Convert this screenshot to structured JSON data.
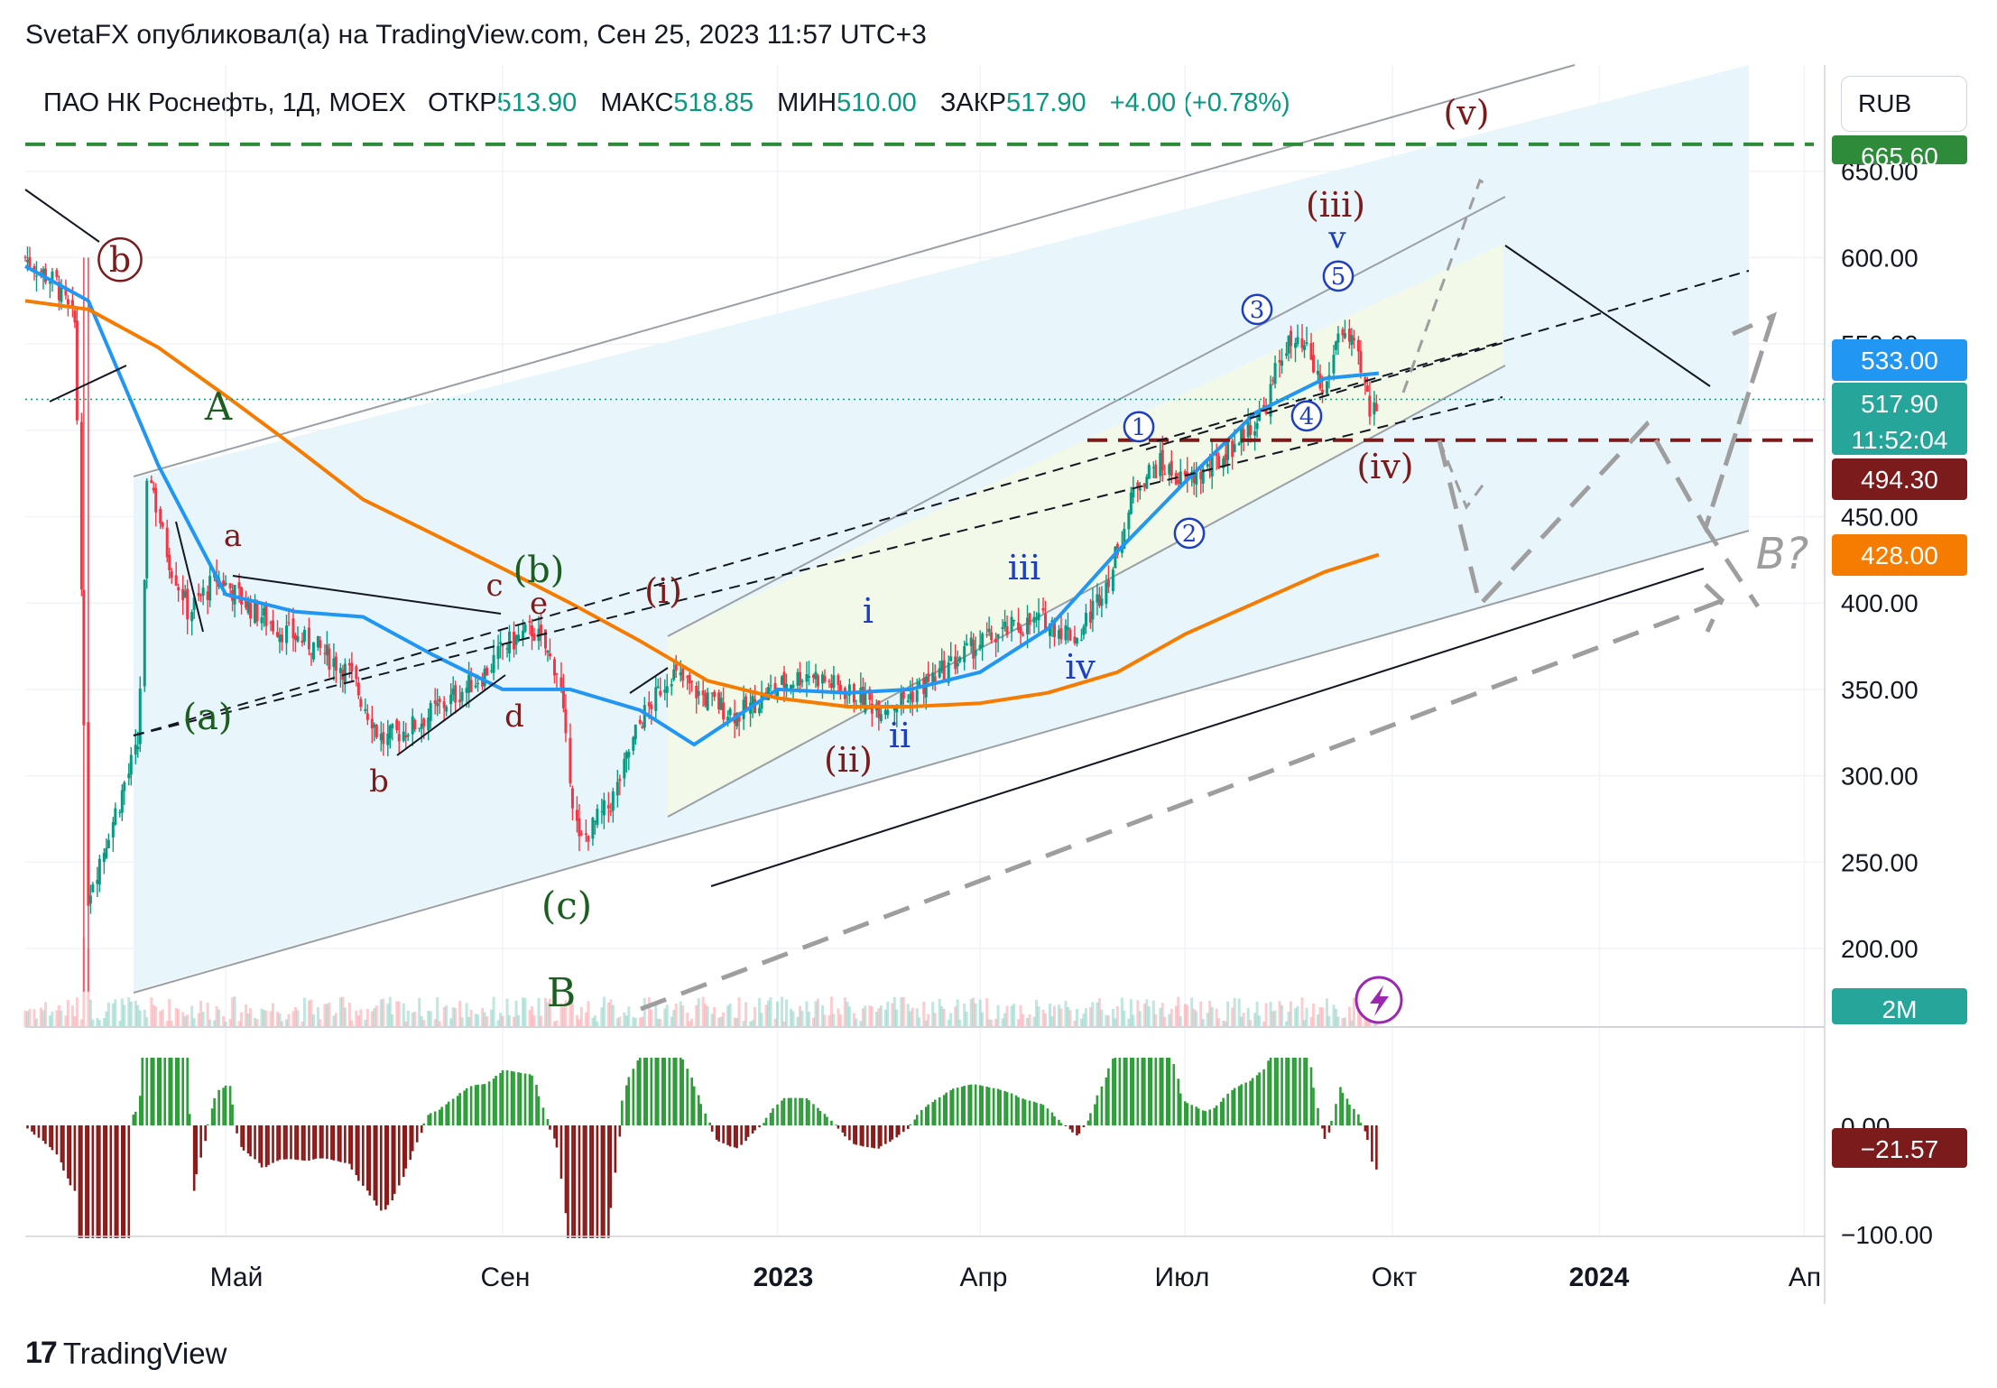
{
  "header": {
    "publisher_line": "SvetaFX опубликовал(а) на TradingView.com, Сен 25, 2023 11:57 UTC+3"
  },
  "symbol": {
    "name": "ПАО НК Роснефть, 1Д, MOEX",
    "open_label": "ОТКР",
    "open": "513.90",
    "high_label": "МАКС",
    "high": "518.85",
    "low_label": "МИН",
    "low": "510.00",
    "close_label": "ЗАКР",
    "close": "517.90",
    "change": "+4.00 (+0.78%)"
  },
  "currency": "RUB",
  "footer": {
    "brand": "TradingView",
    "brand_mark": "17"
  },
  "colors": {
    "up": "#089981",
    "down": "#f23645",
    "ma_fast": "#2196f3",
    "ma_slow": "#f57c00",
    "wave_red": "#7b1b1b",
    "wave_blue": "#1e3fbf",
    "wave_green": "#1b5e20",
    "channel_fill": "#e8f6fb",
    "subchannel_fill": "#f2f9e8",
    "projection": "#9e9e9e",
    "osc_up": "#2e9d3a",
    "osc_down": "#8b1a1a"
  },
  "price_badges": {
    "top": "665.60",
    "ma_fast": "533.00",
    "last": "517.90",
    "countdown": "11:52:04",
    "level": "494.30",
    "ma_slow": "428.00",
    "volume": "2M",
    "osc": "−21.57"
  },
  "price_axis": [
    "650.00",
    "600.00",
    "550.00",
    "500.00",
    "450.00",
    "400.00",
    "350.00",
    "300.00",
    "250.00",
    "200.00"
  ],
  "osc_axis": [
    "0.00",
    "−100.00"
  ],
  "time_axis": [
    "Май",
    "Сен",
    "2023",
    "Апр",
    "Июл",
    "Окт",
    "2024",
    "Ап"
  ],
  "time_axis_bold": [
    "2023",
    "2024"
  ],
  "wave_labels": {
    "red": [
      "b",
      "a",
      "b",
      "c",
      "e",
      "d",
      "(i)",
      "(ii)",
      "(iii)",
      "(iv)",
      "(v)"
    ],
    "blue": [
      "i",
      "ii",
      "iii",
      "iv",
      "v",
      "1",
      "2",
      "3",
      "4",
      "5"
    ],
    "green": [
      "A",
      "B",
      "(a)",
      "(b)",
      "(c)"
    ],
    "gray": [
      "B?"
    ]
  },
  "chart_data": {
    "type": "candlestick",
    "title": "ПАО НК Роснефть, 1Д, MOEX",
    "ylabel": "RUB",
    "ylim": [
      160,
      685
    ],
    "x_range": [
      "2022-02-01",
      "2024-04-10"
    ],
    "grid": true,
    "ohlc_last": {
      "open": 513.9,
      "high": 518.85,
      "low": 510.0,
      "close": 517.9,
      "change": 4.0,
      "change_pct": 0.78
    },
    "price_path": {
      "x": [
        "2022-02-01",
        "2022-02-15",
        "2022-02-24",
        "2022-03-01",
        "2022-03-24",
        "2022-03-28",
        "2022-04-05",
        "2022-04-15",
        "2022-04-28",
        "2022-05-10",
        "2022-05-25",
        "2022-06-10",
        "2022-06-25",
        "2022-07-10",
        "2022-07-25",
        "2022-08-10",
        "2022-08-25",
        "2022-09-02",
        "2022-09-15",
        "2022-09-26",
        "2022-10-05",
        "2022-10-20",
        "2022-11-01",
        "2022-11-15",
        "2022-11-30",
        "2022-12-15",
        "2022-12-30",
        "2023-01-15",
        "2023-01-30",
        "2023-02-15",
        "2023-02-28",
        "2023-03-15",
        "2023-03-30",
        "2023-04-15",
        "2023-04-30",
        "2023-05-15",
        "2023-05-30",
        "2023-06-10",
        "2023-06-20",
        "2023-07-01",
        "2023-07-15",
        "2023-07-25",
        "2023-08-05",
        "2023-08-15",
        "2023-08-25",
        "2023-09-01",
        "2023-09-08",
        "2023-09-15",
        "2023-09-22",
        "2023-09-25"
      ],
      "close": [
        600,
        585,
        560,
        230,
        320,
        480,
        430,
        395,
        415,
        400,
        385,
        375,
        360,
        320,
        330,
        345,
        360,
        375,
        385,
        360,
        260,
        285,
        330,
        360,
        345,
        335,
        350,
        360,
        350,
        340,
        345,
        360,
        375,
        385,
        390,
        380,
        420,
        470,
        480,
        470,
        480,
        495,
        510,
        550,
        545,
        520,
        560,
        545,
        510,
        517.9
      ]
    },
    "series": [
      {
        "name": "MA fast",
        "x": [
          "2022-02-01",
          "2022-03-01",
          "2022-04-01",
          "2022-05-01",
          "2022-06-01",
          "2022-07-01",
          "2022-08-01",
          "2022-09-01",
          "2022-10-01",
          "2022-11-01",
          "2022-11-25",
          "2023-01-01",
          "2023-02-01",
          "2023-03-01",
          "2023-04-01",
          "2023-05-01",
          "2023-06-01",
          "2023-07-01",
          "2023-08-01",
          "2023-09-01",
          "2023-09-25"
        ],
        "values": [
          595,
          575,
          480,
          405,
          395,
          392,
          370,
          350,
          350,
          338,
          318,
          350,
          348,
          350,
          360,
          385,
          430,
          470,
          510,
          530,
          533
        ]
      },
      {
        "name": "MA slow",
        "x": [
          "2022-02-01",
          "2022-03-01",
          "2022-04-01",
          "2022-05-01",
          "2022-06-01",
          "2022-07-01",
          "2022-08-01",
          "2022-09-01",
          "2022-10-01",
          "2022-11-01",
          "2022-12-01",
          "2023-01-01",
          "2023-02-01",
          "2023-03-01",
          "2023-04-01",
          "2023-05-01",
          "2023-06-01",
          "2023-07-01",
          "2023-08-01",
          "2023-09-01",
          "2023-09-25"
        ],
        "values": [
          575,
          570,
          548,
          520,
          490,
          460,
          440,
          420,
          400,
          378,
          355,
          345,
          340,
          340,
          342,
          348,
          360,
          382,
          400,
          418,
          428
        ]
      }
    ],
    "levels": [
      {
        "value": 665.6
      },
      {
        "value": 494.3
      },
      {
        "value": 517.9
      }
    ],
    "oscillator": {
      "last": -21.57
    }
  }
}
